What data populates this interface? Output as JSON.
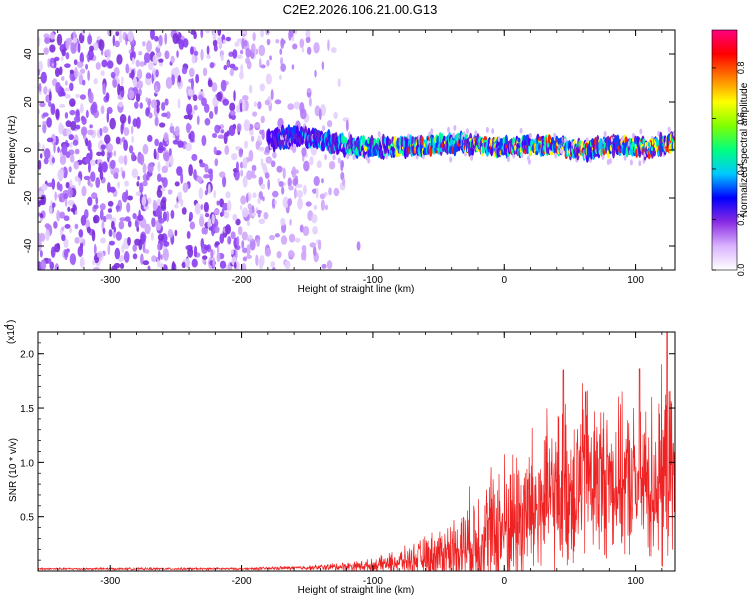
{
  "title": "C2E2.2026.106.21.00.G13",
  "chart_data": [
    {
      "type": "heatmap",
      "name": "spectrogram",
      "xlabel": "Height of straight line (km)",
      "ylabel": "Frequency (Hz)",
      "xlim": [
        -355,
        130
      ],
      "ylim": [
        -50,
        50
      ],
      "xticks": [
        -300,
        -200,
        -100,
        0,
        100
      ],
      "xtick_labels": [
        "-300",
        "-200",
        "-100",
        "0",
        "100"
      ],
      "yticks": [
        -40,
        -20,
        0,
        20,
        40
      ],
      "ytick_labels": [
        "-40",
        "-20",
        "0",
        "20",
        "40"
      ],
      "signal_track": {
        "x": [
          -180,
          -160,
          -150,
          -120,
          -90,
          -60,
          -30,
          0,
          30,
          60,
          90,
          110,
          130
        ],
        "y": [
          4,
          6,
          5,
          2,
          1,
          2,
          3,
          1,
          2,
          0,
          2,
          1,
          4
        ],
        "start_x": -180
      },
      "noise_region": {
        "x_from": -355,
        "x_to": -110,
        "fade_start": -200
      },
      "colorbar": {
        "label": "Normalized spectral amplitude",
        "range": [
          0,
          0.95
        ],
        "ticks": [
          0.0,
          0.2,
          0.4,
          0.6,
          0.8
        ],
        "tick_labels": [
          "0.0",
          "0.2",
          "0.4",
          "0.6",
          "0.8"
        ],
        "colors": [
          "#ffffff",
          "#d9b3ff",
          "#8a2be2",
          "#0000ff",
          "#00c8ff",
          "#00ff80",
          "#80ff00",
          "#ffff00",
          "#ff8000",
          "#ff0000",
          "#ff0080"
        ]
      }
    },
    {
      "type": "line",
      "name": "snr",
      "xlabel": "Height of straight line (km)",
      "ylabel": "SNR (10 * v/v)",
      "multiplier_label": "(x10",
      "multiplier_exp": "4",
      "xlim": [
        -355,
        130
      ],
      "ylim": [
        0,
        2.2
      ],
      "xticks": [
        -300,
        -200,
        -100,
        0,
        100
      ],
      "xtick_labels": [
        "-300",
        "-200",
        "-100",
        "0",
        "100"
      ],
      "yticks": [
        0.5,
        1.0,
        1.5,
        2.0
      ],
      "ytick_labels": [
        "0.5",
        "1.0",
        "1.5",
        "2.0"
      ],
      "envelope": {
        "x": [
          -355,
          -200,
          -150,
          -100,
          -70,
          -40,
          -20,
          0,
          20,
          40,
          60,
          80,
          100,
          120,
          130
        ],
        "baseline": [
          0.02,
          0.02,
          0.03,
          0.05,
          0.1,
          0.18,
          0.28,
          0.4,
          0.55,
          0.7,
          0.85,
          0.85,
          0.8,
          0.85,
          0.9
        ],
        "amplitude": [
          0.01,
          0.01,
          0.02,
          0.06,
          0.14,
          0.3,
          0.55,
          0.7,
          0.75,
          0.75,
          0.85,
          0.7,
          0.7,
          0.9,
          0.7
        ]
      },
      "peaks": [
        {
          "x": 45,
          "y": 1.85
        },
        {
          "x": 62,
          "y": 1.65
        },
        {
          "x": 103,
          "y": 1.86
        },
        {
          "x": 124,
          "y": 2.2
        }
      ],
      "series_color": "#ee2222"
    }
  ]
}
